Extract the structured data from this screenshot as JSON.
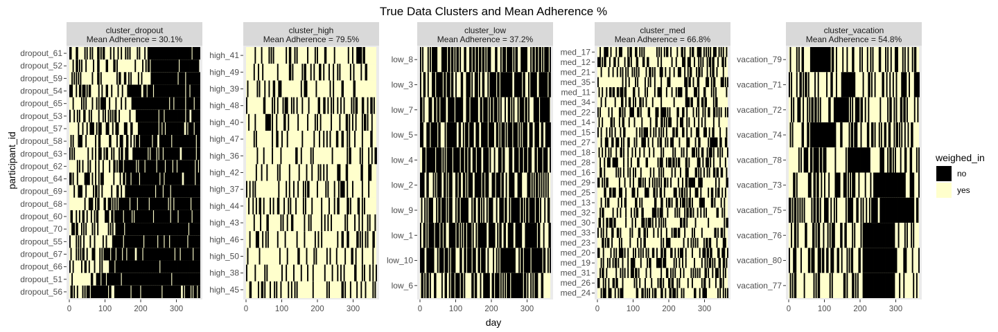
{
  "chart_data": {
    "type": "heatmap",
    "title": "True Data Clusters and Mean Adherence %",
    "xlabel": "day",
    "ylabel": "participant_id",
    "xlim": [
      0,
      365
    ],
    "x_ticks": [
      0,
      100,
      200,
      300
    ],
    "legend": {
      "title": "weighed_in",
      "placement": "right",
      "items": [
        {
          "label": "no",
          "color": "#000000"
        },
        {
          "label": "yes",
          "color": "#ffffcc"
        }
      ]
    },
    "colors": {
      "no": "#000000",
      "yes": "#ffffcc",
      "strip": "#d9d9d9",
      "panel_bg": "#ebebeb"
    },
    "panels": [
      {
        "strip_name": "cluster_dropout",
        "strip_stat": "Mean Adherence = 30.1%",
        "mean_adherence": 30.1,
        "participants": [
          "dropout_61",
          "dropout_52",
          "dropout_59",
          "dropout_54",
          "dropout_65",
          "dropout_53",
          "dropout_57",
          "dropout_58",
          "dropout_63",
          "dropout_62",
          "dropout_64",
          "dropout_69",
          "dropout_68",
          "dropout_60",
          "dropout_70",
          "dropout_55",
          "dropout_67",
          "dropout_66",
          "dropout_51",
          "dropout_56"
        ],
        "dropout_day": [
          220,
          215,
          230,
          160,
          175,
          185,
          195,
          185,
          175,
          130,
          150,
          155,
          140,
          125,
          130,
          120,
          90,
          110,
          75,
          60
        ]
      },
      {
        "strip_name": "cluster_high",
        "strip_stat": "Mean Adherence = 79.5%",
        "mean_adherence": 79.5,
        "participants": [
          "high_41",
          "high_49",
          "high_39",
          "high_48",
          "high_40",
          "high_47",
          "high_36",
          "high_42",
          "high_37",
          "high_44",
          "high_43",
          "high_46",
          "high_50",
          "high_38",
          "high_45"
        ]
      },
      {
        "strip_name": "cluster_low",
        "strip_stat": "Mean Adherence = 37.2%",
        "mean_adherence": 37.2,
        "participants": [
          "low_8",
          "low_3",
          "low_7",
          "low_5",
          "low_4",
          "low_2",
          "low_9",
          "low_1",
          "low_10",
          "low_6"
        ]
      },
      {
        "strip_name": "cluster_med",
        "strip_stat": "Mean Adherence = 66.8%",
        "mean_adherence": 66.8,
        "participants": [
          "med_17",
          "med_12",
          "med_21",
          "med_35",
          "med_11",
          "med_34",
          "med_22",
          "med_14",
          "med_15",
          "med_27",
          "med_18",
          "med_28",
          "med_16",
          "med_29",
          "med_25",
          "med_13",
          "med_32",
          "med_30",
          "med_33",
          "med_23",
          "med_20",
          "med_19",
          "med_31",
          "med_26",
          "med_24"
        ]
      },
      {
        "strip_name": "cluster_vacation",
        "strip_stat": "Mean Adherence = 54.8%",
        "mean_adherence": 54.8,
        "participants": [
          "vacation_79",
          "vacation_71",
          "vacation_72",
          "vacation_74",
          "vacation_78",
          "vacation_73",
          "vacation_75",
          "vacation_76",
          "vacation_80",
          "vacation_77"
        ],
        "vacation_days": [
          [
            60,
            105
          ],
          [
            145,
            185
          ],
          [
            125,
            165
          ],
          [
            60,
            125
          ],
          [
            165,
            225
          ],
          [
            240,
            325
          ],
          [
            260,
            350
          ],
          [
            205,
            290
          ],
          [
            205,
            300
          ],
          [
            210,
            295
          ]
        ]
      }
    ]
  }
}
